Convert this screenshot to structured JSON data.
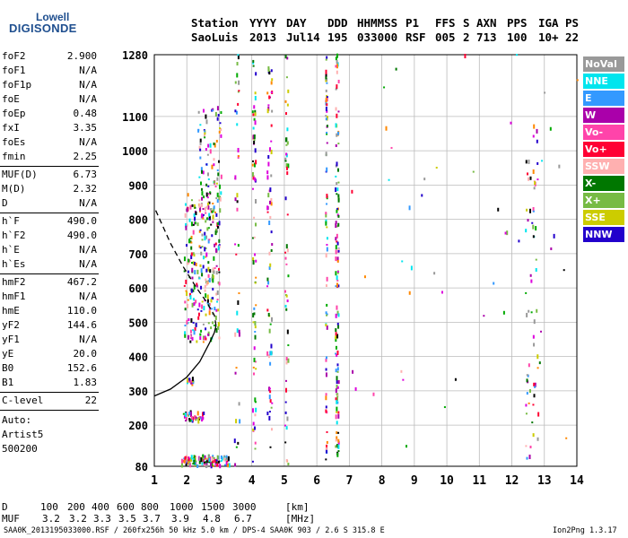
{
  "logo": {
    "top": "Lowell",
    "bottom": "DIGISONDE"
  },
  "header": {
    "labels": [
      "Station",
      "YYYY",
      "DAY",
      "DDD",
      "HHMMSS",
      "P1",
      "FFS",
      "S",
      "AXN",
      "PPS",
      "IGA",
      "PS"
    ],
    "values": [
      "SaoLuis",
      "2013",
      "Jul14",
      "195",
      "033000",
      "RSF",
      "005",
      "2",
      "713",
      "100",
      "10+",
      "22"
    ]
  },
  "params_group1": [
    {
      "name": "foF2",
      "value": "2.900"
    },
    {
      "name": "foF1",
      "value": "N/A"
    },
    {
      "name": "foF1p",
      "value": "N/A"
    },
    {
      "name": "foE",
      "value": "N/A"
    },
    {
      "name": "foEp",
      "value": "0.48"
    },
    {
      "name": "fxI",
      "value": "3.35"
    },
    {
      "name": "foEs",
      "value": "N/A"
    },
    {
      "name": "fmin",
      "value": "2.25"
    }
  ],
  "params_group2": [
    {
      "name": "MUF(D)",
      "value": "6.73"
    },
    {
      "name": "M(D)",
      "value": "2.32"
    },
    {
      "name": "D",
      "value": "N/A"
    }
  ],
  "params_group3": [
    {
      "name": "h`F",
      "value": "490.0"
    },
    {
      "name": "h`F2",
      "value": "490.0"
    },
    {
      "name": "h`E",
      "value": "N/A"
    },
    {
      "name": "h`Es",
      "value": "N/A"
    }
  ],
  "params_group4": [
    {
      "name": "hmF2",
      "value": "467.2"
    },
    {
      "name": "hmF1",
      "value": "N/A"
    },
    {
      "name": "hmE",
      "value": "110.0"
    },
    {
      "name": "yF2",
      "value": "144.6"
    },
    {
      "name": "yF1",
      "value": "N/A"
    },
    {
      "name": "yE",
      "value": "20.0"
    },
    {
      "name": "B0",
      "value": "152.6"
    },
    {
      "name": "B1",
      "value": "1.83"
    }
  ],
  "clevel": {
    "name": "C-level",
    "value": "22"
  },
  "autoscale": [
    "Auto:",
    "Artist5",
    "500200"
  ],
  "legend": [
    {
      "label": "NoVal",
      "color": "#999999"
    },
    {
      "label": "NNE",
      "color": "#00e5ee"
    },
    {
      "label": "E",
      "color": "#3399ff"
    },
    {
      "label": "W",
      "color": "#aa00aa"
    },
    {
      "label": "Vo-",
      "color": "#ff44aa"
    },
    {
      "label": "Vo+",
      "color": "#ff0033"
    },
    {
      "label": "SSW",
      "color": "#ffb0b0"
    },
    {
      "label": "X-",
      "color": "#007700"
    },
    {
      "label": "X+",
      "color": "#77bb44"
    },
    {
      "label": "SSE",
      "color": "#cccc00"
    },
    {
      "label": "NNW",
      "color": "#2200cc"
    }
  ],
  "muf_table": {
    "rows": [
      {
        "label": "D",
        "values": [
          "100",
          "200",
          "400",
          "600",
          "800",
          "1000",
          "1500",
          "3000"
        ],
        "unit": "[km]"
      },
      {
        "label": "MUF",
        "values": [
          "3.2",
          "3.2",
          "3.3",
          "3.5",
          "3.7",
          "3.9",
          "4.8",
          "6.7"
        ],
        "unit": "[MHz]"
      }
    ]
  },
  "footer": {
    "left": "SAA0K_2013195033000.RSF / 260fx256h 50 kHz 5.0 km / DPS-4 SAA0K 903 / 2.6 S 315.8 E",
    "right": "Ion2Png 1.3.17"
  },
  "chart_data": {
    "type": "scatter",
    "xlim": [
      1,
      14
    ],
    "ylim": [
      80,
      1280
    ],
    "x_ticks": [
      1,
      2,
      3,
      4,
      5,
      6,
      7,
      8,
      9,
      10,
      11,
      12,
      13,
      14
    ],
    "y_ticks": [
      80,
      200,
      300,
      400,
      500,
      600,
      700,
      800,
      900,
      1000,
      1100,
      1280
    ],
    "grid": true,
    "legend_position": "right",
    "traces": {
      "edp": [
        [
          1.0,
          285
        ],
        [
          1.5,
          305
        ],
        [
          2.0,
          340
        ],
        [
          2.4,
          385
        ],
        [
          2.7,
          440
        ],
        [
          2.85,
          470
        ],
        [
          2.9,
          490
        ]
      ],
      "edp_topside": [
        [
          2.9,
          490
        ],
        [
          2.85,
          520
        ],
        [
          2.6,
          560
        ],
        [
          2.3,
          600
        ],
        [
          1.9,
          660
        ],
        [
          1.5,
          730
        ],
        [
          1.0,
          835
        ]
      ]
    },
    "scatter_groups": [
      {
        "name": "F-trace",
        "x_range": [
          1.9,
          3.0
        ],
        "y_range": [
          440,
          880
        ],
        "count": 260
      },
      {
        "name": "F-trace-upper",
        "x_range": [
          2.3,
          3.05
        ],
        "y_range": [
          800,
          1130
        ],
        "count": 90
      },
      {
        "name": "F-low",
        "x_range": [
          1.85,
          2.5
        ],
        "y_range": [
          210,
          240
        ],
        "count": 40
      },
      {
        "name": "F-low2",
        "x_range": [
          1.95,
          2.2
        ],
        "y_range": [
          320,
          335
        ],
        "count": 15
      },
      {
        "name": "bottom-band",
        "x_range": [
          1.8,
          3.3
        ],
        "y_range": [
          80,
          110
        ],
        "count": 120
      },
      {
        "name": "col-3.5",
        "x_range": [
          3.45,
          3.6
        ],
        "y_range": [
          80,
          1280
        ],
        "count": 40
      },
      {
        "name": "col-4",
        "x_range": [
          4.0,
          4.1
        ],
        "y_range": [
          80,
          1280
        ],
        "count": 70
      },
      {
        "name": "col-4.5",
        "x_range": [
          4.45,
          4.6
        ],
        "y_range": [
          80,
          1280
        ],
        "count": 70
      },
      {
        "name": "col-5",
        "x_range": [
          5.0,
          5.1
        ],
        "y_range": [
          80,
          1280
        ],
        "count": 50
      },
      {
        "name": "col-6.2",
        "x_range": [
          6.25,
          6.3
        ],
        "y_range": [
          80,
          1280
        ],
        "count": 70
      },
      {
        "name": "col-6.6",
        "x_range": [
          6.55,
          6.65
        ],
        "y_range": [
          80,
          1280
        ],
        "count": 120
      },
      {
        "name": "col-12.5",
        "x_range": [
          12.4,
          12.8
        ],
        "y_range": [
          100,
          1120
        ],
        "count": 60
      },
      {
        "name": "sparse",
        "x_range": [
          7,
          14
        ],
        "y_range": [
          100,
          1280
        ],
        "count": 50
      }
    ]
  }
}
